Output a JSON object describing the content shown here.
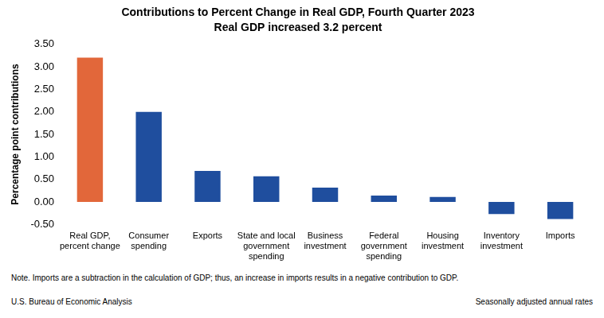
{
  "chart_data": {
    "type": "bar",
    "title": "Contributions to Percent Change in Real GDP, Fourth Quarter 2023",
    "subtitle": "Real GDP increased 3.2 percent",
    "y_label": "Percentage point contributions",
    "categories": [
      "Real GDP, percent change",
      "Consumer spending",
      "Exports",
      "State and local government spending",
      "Business investment",
      "Federal government spending",
      "Housing investment",
      "Inventory investment",
      "Imports"
    ],
    "values": [
      3.2,
      2.0,
      0.69,
      0.57,
      0.32,
      0.14,
      0.11,
      -0.27,
      -0.38
    ],
    "colors": [
      "#e2673a",
      "#1f4e9e",
      "#1f4e9e",
      "#1f4e9e",
      "#1f4e9e",
      "#1f4e9e",
      "#1f4e9e",
      "#1f4e9e",
      "#1f4e9e"
    ],
    "ylim": [
      -0.5,
      3.5
    ],
    "yticks": [
      {
        "value": -0.5,
        "label": "-0.50"
      },
      {
        "value": 0,
        "label": "0.00"
      },
      {
        "value": 0.5,
        "label": "0.50"
      },
      {
        "value": 1,
        "label": "1.00"
      },
      {
        "value": 1.5,
        "label": "1.50"
      },
      {
        "value": 2,
        "label": "2.00"
      },
      {
        "value": 2.5,
        "label": "2.50"
      },
      {
        "value": 3,
        "label": "3.00"
      },
      {
        "value": 3.5,
        "label": "3.50"
      }
    ],
    "grid": false,
    "annotations": [
      "Note. Imports are a subtraction in the calculation of GDP; thus, an increase in imports results in a negative contribution to GDP.",
      "U.S. Bureau of Economic Analysis",
      "Seasonally adjusted annual rates"
    ]
  }
}
